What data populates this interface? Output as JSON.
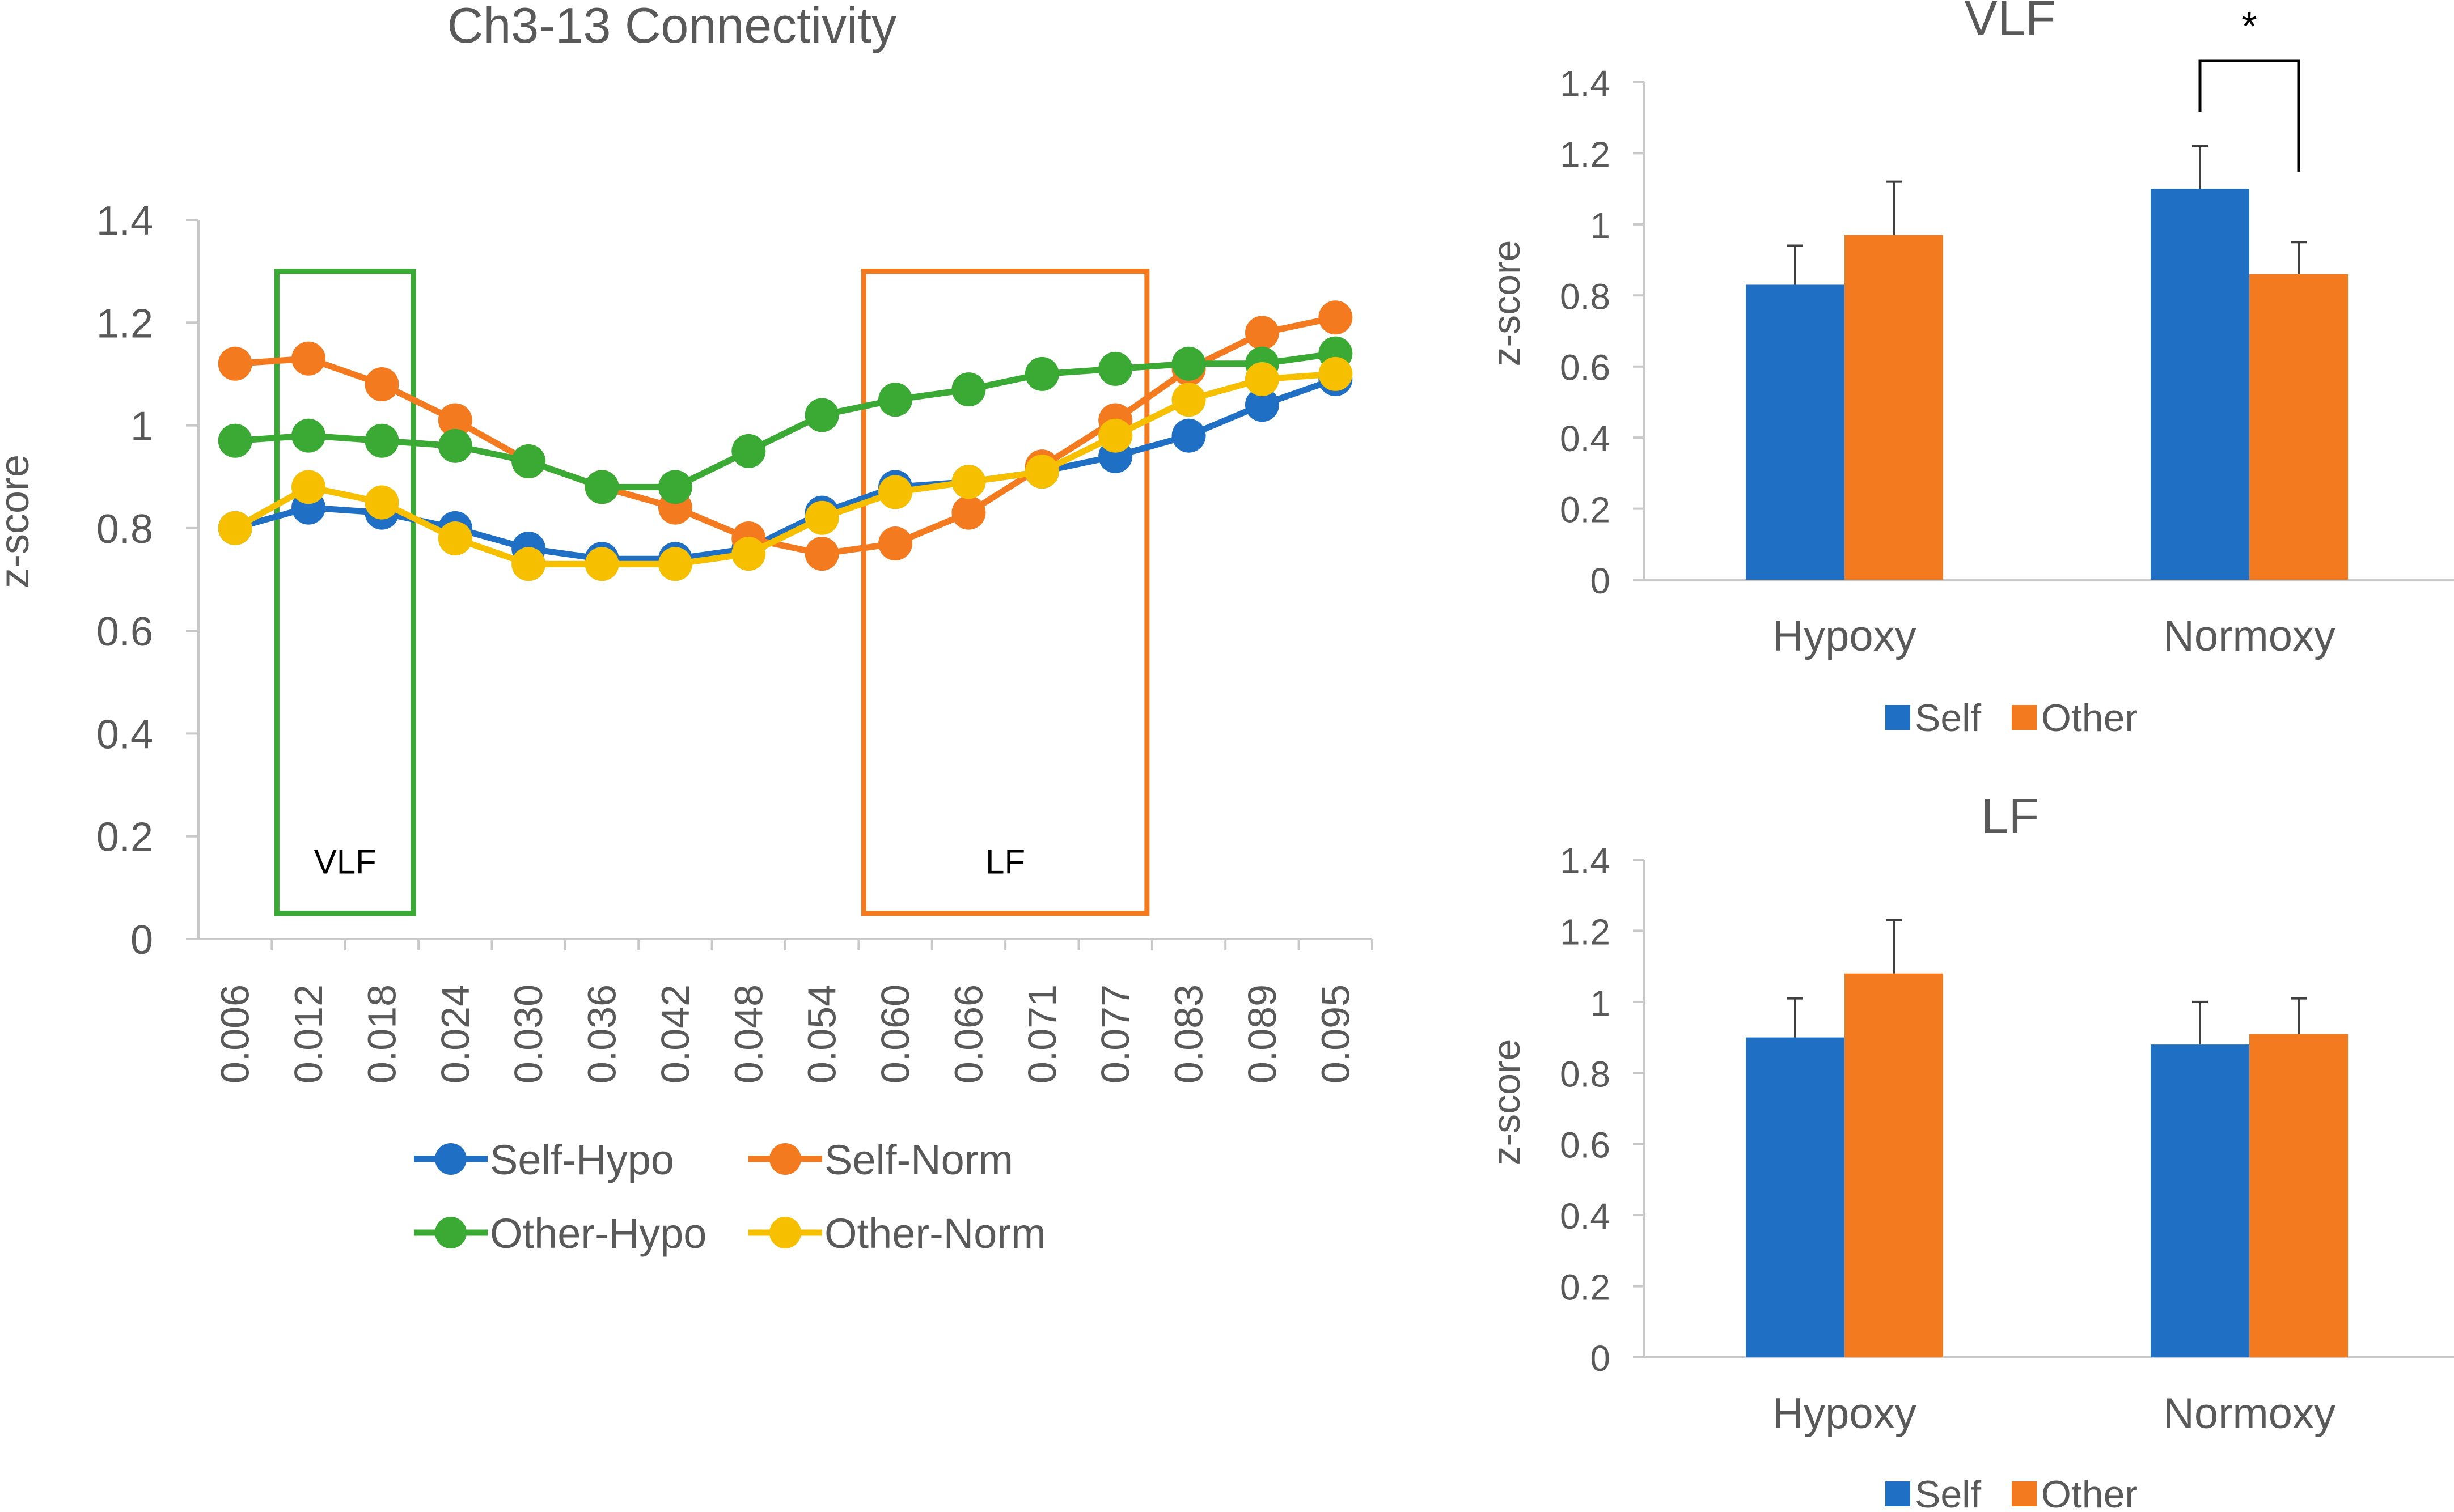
{
  "colors": {
    "self_hypo": "#1f6fc5",
    "self_norm": "#f47a20",
    "other_hypo": "#3aaa35",
    "other_norm": "#f6c000",
    "self": "#1f6fc5",
    "other": "#f47a20",
    "axis": "#c8c8c8",
    "text": "#595959",
    "vlf_box": "#3aaa35",
    "lf_box": "#f47a20"
  },
  "chart_data": [
    {
      "type": "line",
      "title": "Ch3-13 Connectivity",
      "xlabel": "",
      "ylabel": "z-score",
      "ylim": [
        0,
        1.4
      ],
      "yticks": [
        "0",
        "0.2",
        "0.4",
        "0.6",
        "0.8",
        "1",
        "1.2",
        "1.4"
      ],
      "categories": [
        "0.006",
        "0.012",
        "0.018",
        "0.024",
        "0.030",
        "0.036",
        "0.042",
        "0.048",
        "0.054",
        "0.060",
        "0.066",
        "0.071",
        "0.077",
        "0.083",
        "0.089",
        "0.095"
      ],
      "series": [
        {
          "name": "Self-Hypo",
          "values": [
            0.8,
            0.84,
            0.83,
            0.8,
            0.76,
            0.74,
            0.74,
            0.76,
            0.83,
            0.88,
            0.89,
            0.91,
            0.94,
            0.98,
            1.04,
            1.09
          ]
        },
        {
          "name": "Self-Norm",
          "values": [
            1.12,
            1.13,
            1.08,
            1.01,
            0.93,
            0.88,
            0.84,
            0.78,
            0.75,
            0.77,
            0.83,
            0.92,
            1.01,
            1.11,
            1.18,
            1.21
          ]
        },
        {
          "name": "Other-Hypo",
          "values": [
            0.97,
            0.98,
            0.97,
            0.96,
            0.93,
            0.88,
            0.88,
            0.95,
            1.02,
            1.05,
            1.07,
            1.1,
            1.11,
            1.12,
            1.12,
            1.14
          ]
        },
        {
          "name": "Other-Norm",
          "values": [
            0.8,
            0.88,
            0.85,
            0.78,
            0.73,
            0.73,
            0.73,
            0.75,
            0.82,
            0.87,
            0.89,
            0.91,
            0.98,
            1.05,
            1.09,
            1.1
          ]
        }
      ],
      "annotations": [
        {
          "label": "VLF",
          "from_category": "0.012",
          "to_category": "0.018",
          "y_range": [
            0.05,
            1.3
          ]
        },
        {
          "label": "LF",
          "from_category": "0.060",
          "to_category": "0.077",
          "y_range": [
            0.05,
            1.3
          ]
        }
      ],
      "legend": "bottom"
    },
    {
      "type": "bar",
      "title": "VLF",
      "ylabel": "z-score",
      "ylim": [
        0,
        1.4
      ],
      "yticks": [
        "0",
        "0.2",
        "0.4",
        "0.6",
        "0.8",
        "1",
        "1.2",
        "1.4"
      ],
      "categories": [
        "Hypoxy",
        "Normoxy"
      ],
      "series": [
        {
          "name": "Self",
          "values": [
            0.83,
            1.1
          ],
          "errors": [
            0.11,
            0.12
          ]
        },
        {
          "name": "Other",
          "values": [
            0.97,
            0.86
          ],
          "errors": [
            0.15,
            0.09
          ]
        }
      ],
      "significance": {
        "label": "*",
        "category": "Normoxy"
      },
      "legend": "bottom"
    },
    {
      "type": "bar",
      "title": "LF",
      "ylabel": "z-score",
      "ylim": [
        0,
        1.4
      ],
      "yticks": [
        "0",
        "0.2",
        "0.4",
        "0.6",
        "0.8",
        "1",
        "1.2",
        "1.4"
      ],
      "categories": [
        "Hypoxy",
        "Normoxy"
      ],
      "series": [
        {
          "name": "Self",
          "values": [
            0.9,
            0.88
          ],
          "errors": [
            0.11,
            0.12
          ]
        },
        {
          "name": "Other",
          "values": [
            1.08,
            0.91
          ],
          "errors": [
            0.15,
            0.1
          ]
        }
      ],
      "legend": "bottom"
    }
  ]
}
